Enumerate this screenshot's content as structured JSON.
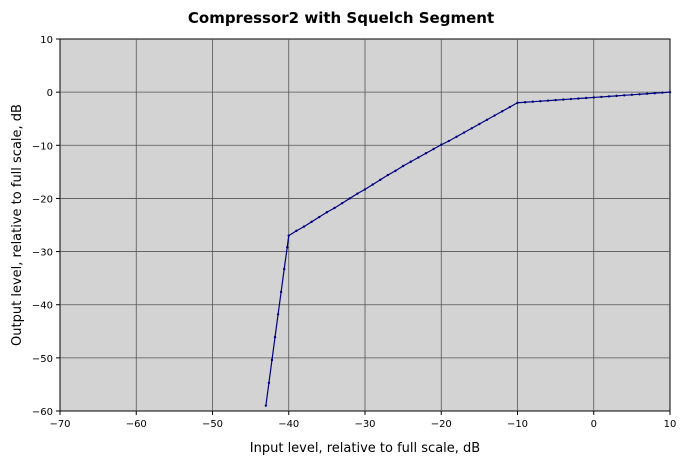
{
  "chart_data": {
    "type": "line",
    "title": "Compressor2 with Squelch Segment",
    "xlabel": "Input level, relative to full scale, dB",
    "ylabel": "Output level, relative to full scale, dB",
    "xlim": [
      -70,
      10
    ],
    "ylim": [
      -60,
      10
    ],
    "xticks": [
      -70,
      -60,
      -50,
      -40,
      -30,
      -20,
      -10,
      0,
      10
    ],
    "yticks": [
      -60,
      -50,
      -40,
      -30,
      -20,
      -10,
      0,
      10
    ],
    "xtick_labels": [
      "−70",
      "−60",
      "−50",
      "−40",
      "−30",
      "−20",
      "−10",
      "0",
      "10"
    ],
    "ytick_labels": [
      "−60",
      "−50",
      "−40",
      "−30",
      "−20",
      "−10",
      "0",
      "10"
    ],
    "grid": true,
    "plot_background": "#d3d3d3",
    "line_color": "#000080",
    "grid_color": "#555555",
    "series": [
      {
        "x": [
          -43.0,
          -42.6,
          -42.2,
          -41.8,
          -41.4,
          -41.0,
          -40.6,
          -40.2,
          -40.0,
          -39.0,
          -38.0,
          -37.0,
          -36.0,
          -35.0,
          -34.0,
          -33.0,
          -32.0,
          -31.0,
          -30.0,
          -29.0,
          -28.0,
          -27.0,
          -26.0,
          -25.0,
          -24.0,
          -23.0,
          -22.0,
          -21.0,
          -20.0,
          -19.0,
          -18.0,
          -17.0,
          -16.0,
          -15.0,
          -14.0,
          -13.0,
          -12.0,
          -11.0,
          -10.0,
          -9.0,
          -8.0,
          -7.0,
          -6.0,
          -5.0,
          -4.0,
          -3.0,
          -2.0,
          -1.0,
          0.0,
          1.0,
          2.0,
          3.0,
          4.0,
          5.0,
          6.0,
          7.0,
          8.0,
          9.0,
          10.0
        ],
        "y": [
          -59.0,
          -54.7,
          -50.4,
          -46.1,
          -41.8,
          -37.6,
          -33.3,
          -29.2,
          -27.0,
          -26.1,
          -25.3,
          -24.4,
          -23.5,
          -22.6,
          -21.8,
          -20.9,
          -20.0,
          -19.1,
          -18.3,
          -17.4,
          -16.5,
          -15.6,
          -14.8,
          -13.9,
          -13.1,
          -12.3,
          -11.5,
          -10.7,
          -9.9,
          -9.2,
          -8.4,
          -7.6,
          -6.8,
          -6.0,
          -5.2,
          -4.4,
          -3.6,
          -2.8,
          -2.0,
          -1.9,
          -1.8,
          -1.7,
          -1.6,
          -1.5,
          -1.4,
          -1.3,
          -1.2,
          -1.1,
          -1.0,
          -0.9,
          -0.8,
          -0.7,
          -0.6,
          -0.5,
          -0.4,
          -0.3,
          -0.2,
          -0.1,
          0.0
        ]
      }
    ]
  }
}
